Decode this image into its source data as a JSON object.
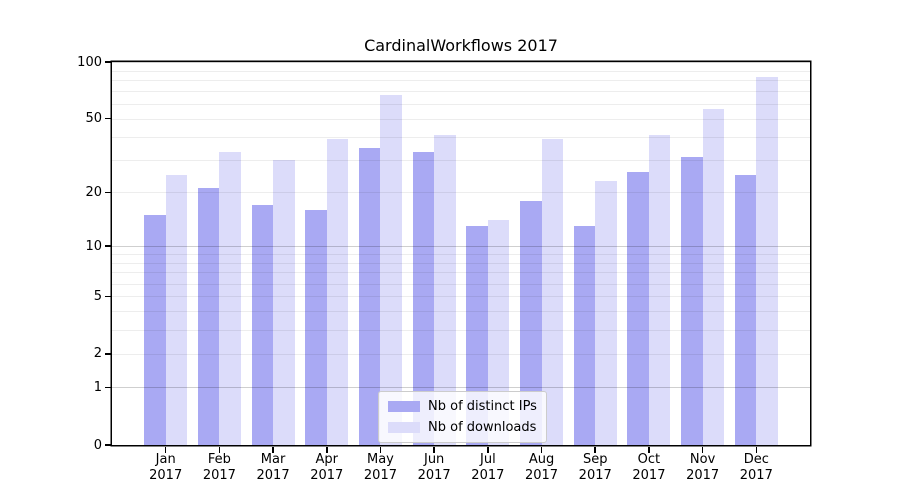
{
  "chart_data": {
    "type": "bar",
    "title": "CardinalWorkflows 2017",
    "categories": [
      "Jan",
      "Feb",
      "Mar",
      "Apr",
      "May",
      "Jun",
      "Jul",
      "Aug",
      "Sep",
      "Oct",
      "Nov",
      "Dec"
    ],
    "year": "2017",
    "series": [
      {
        "name": "Nb of distinct IPs",
        "color": "#a9a9f3",
        "values": [
          15,
          21,
          17,
          16,
          35,
          33,
          13,
          18,
          13,
          26,
          31,
          25
        ]
      },
      {
        "name": "Nb of downloads",
        "color": "#dcdcfa",
        "values": [
          25,
          33,
          30,
          39,
          67,
          41,
          14,
          39,
          23,
          41,
          56,
          83
        ]
      }
    ],
    "xlabel": "",
    "ylabel": "",
    "yscale": "log1p",
    "ylim": [
      0,
      100
    ],
    "yticks": [
      0,
      1,
      2,
      5,
      10,
      20,
      50,
      100
    ],
    "ytick_labels": [
      "0",
      "1",
      "2",
      "5",
      "10",
      "20",
      "50",
      "100"
    ],
    "major_gridlines": [
      1,
      10,
      100
    ],
    "minor_gridlines": [
      2,
      3,
      4,
      5,
      6,
      7,
      8,
      9,
      20,
      30,
      40,
      50,
      60,
      70,
      80,
      90
    ],
    "grid": true,
    "legend_position": "lower center",
    "axis_color": "#000000",
    "major_grid_color": "rgba(0,0,0,0.19)",
    "minor_grid_color": "rgba(0,0,0,0.07)"
  }
}
